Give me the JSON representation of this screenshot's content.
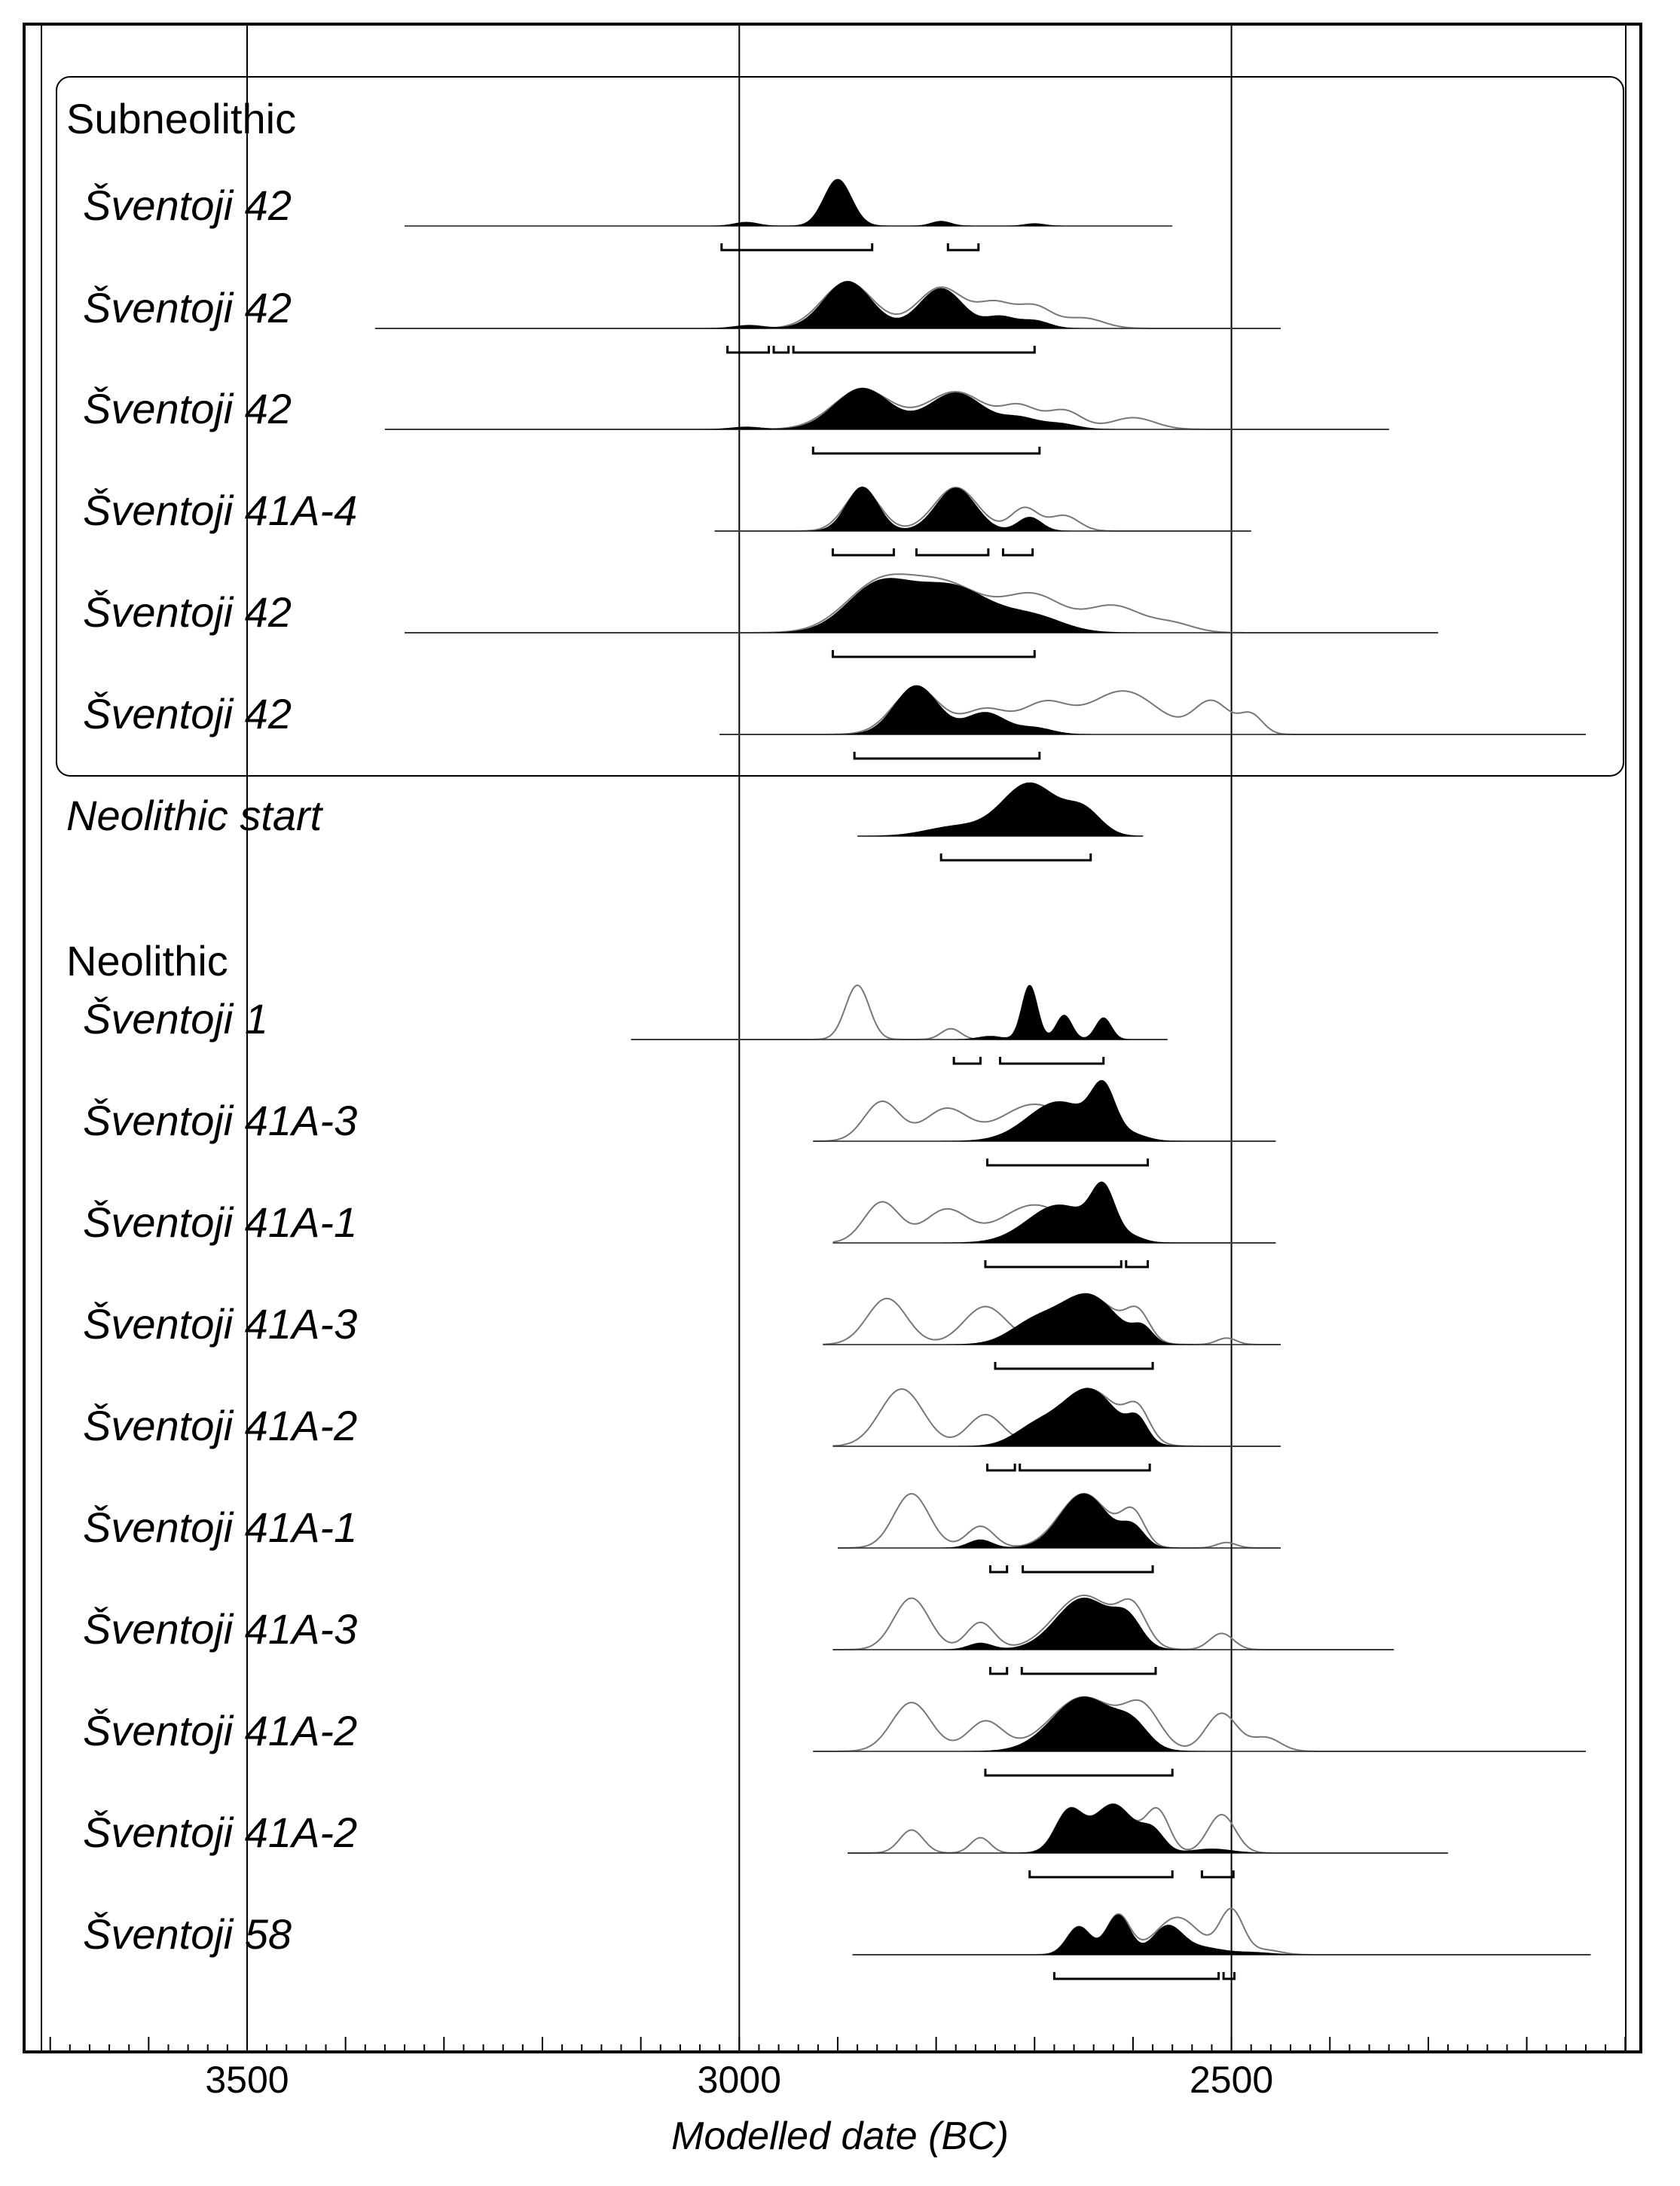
{
  "chart_data": {
    "type": "oxcal-multiplot",
    "xlabel": "Modelled date (BC)",
    "xlim": [
      3700,
      2060
    ],
    "x_ticks": [
      3500,
      3000,
      2500
    ],
    "x_tick_labels": [
      "3500",
      "3000",
      "2500"
    ],
    "grid_lines_x": [
      3500,
      3000,
      2500
    ],
    "groups": [
      {
        "label": "Subneolithic",
        "from": 0,
        "to": 5
      },
      {
        "label": "Neolithic",
        "from": 7,
        "to": 19
      }
    ],
    "rows": [
      {
        "label": "Šventoji 42",
        "italic": true,
        "range": [
          3340,
          2560
        ],
        "peaks": [
          [
            2993,
            0.08,
            12
          ],
          [
            2900,
            1.0,
            14
          ],
          [
            2795,
            0.1,
            10
          ],
          [
            2700,
            0.05,
            10
          ]
        ],
        "hpd": [
          [
            3018,
            2865
          ],
          [
            2788,
            2757
          ]
        ]
      },
      {
        "label": "Šventoji 42",
        "italic": true,
        "range": [
          3370,
          2450
        ],
        "peaks": [
          [
            2990,
            0.06,
            15
          ],
          [
            2890,
            0.92,
            24
          ],
          [
            2795,
            0.78,
            22
          ],
          [
            2735,
            0.22,
            15
          ],
          [
            2700,
            0.15,
            15
          ]
        ],
        "prior": [
          [
            2890,
            0.9,
            26
          ],
          [
            2795,
            0.8,
            24
          ],
          [
            2740,
            0.45,
            18
          ],
          [
            2700,
            0.42,
            18
          ],
          [
            2650,
            0.2,
            20
          ]
        ],
        "hpd": [
          [
            3012,
            2970
          ],
          [
            2965,
            2950
          ],
          [
            2945,
            2700
          ]
        ]
      },
      {
        "label": "Šventoji 42",
        "italic": true,
        "range": [
          3360,
          2340
        ],
        "peaks": [
          [
            2993,
            0.05,
            15
          ],
          [
            2875,
            0.88,
            28
          ],
          [
            2780,
            0.78,
            28
          ],
          [
            2715,
            0.22,
            18
          ],
          [
            2675,
            0.12,
            18
          ]
        ],
        "prior": [
          [
            2875,
            0.85,
            30
          ],
          [
            2780,
            0.8,
            30
          ],
          [
            2715,
            0.45,
            18
          ],
          [
            2670,
            0.4,
            18
          ],
          [
            2600,
            0.25,
            22
          ]
        ],
        "hpd": [
          [
            2925,
            2695
          ]
        ]
      },
      {
        "label": "Šventoji 41A-4",
        "italic": true,
        "range": [
          3025,
          2480
        ],
        "peaks": [
          [
            2875,
            0.86,
            16
          ],
          [
            2780,
            0.84,
            20
          ],
          [
            2705,
            0.27,
            12
          ]
        ],
        "prior": [
          [
            2875,
            0.8,
            18
          ],
          [
            2780,
            0.85,
            22
          ],
          [
            2710,
            0.45,
            14
          ],
          [
            2670,
            0.3,
            15
          ]
        ],
        "hpd": [
          [
            2905,
            2843
          ],
          [
            2820,
            2747
          ],
          [
            2732,
            2702
          ]
        ]
      },
      {
        "label": "Šventoji 42",
        "italic": true,
        "range": [
          3340,
          2290
        ],
        "peaks": [
          [
            2860,
            0.75,
            32
          ],
          [
            2785,
            0.78,
            40
          ],
          [
            2700,
            0.25,
            30
          ]
        ],
        "prior": [
          [
            2860,
            0.75,
            34
          ],
          [
            2790,
            0.8,
            40
          ],
          [
            2700,
            0.6,
            30
          ],
          [
            2620,
            0.45,
            28
          ],
          [
            2560,
            0.15,
            22
          ]
        ],
        "hpd": [
          [
            2905,
            2700
          ]
        ]
      },
      {
        "label": "Šventoji 42",
        "italic": true,
        "range": [
          3020,
          2140
        ],
        "peaks": [
          [
            2820,
            0.9,
            22
          ],
          [
            2750,
            0.4,
            20
          ],
          [
            2700,
            0.12,
            18
          ]
        ],
        "prior": [
          [
            2820,
            0.85,
            24
          ],
          [
            2750,
            0.45,
            22
          ],
          [
            2690,
            0.55,
            24
          ],
          [
            2610,
            0.8,
            35
          ],
          [
            2520,
            0.6,
            18
          ],
          [
            2480,
            0.35,
            12
          ]
        ],
        "hpd": [
          [
            2883,
            2695
          ]
        ]
      },
      {
        "label": "Neolithic start",
        "italic": true,
        "range": [
          2880,
          2590
        ],
        "peaks": [
          [
            2705,
            1.0,
            28
          ],
          [
            2650,
            0.45,
            18
          ],
          [
            2780,
            0.18,
            30
          ]
        ],
        "hpd": [
          [
            2795,
            2643
          ]
        ]
      },
      {
        "label": "Šventoji 1",
        "italic": true,
        "range": [
          3110,
          2565
        ],
        "peaks": [
          [
            2705,
            1.0,
            8
          ],
          [
            2670,
            0.45,
            8
          ],
          [
            2630,
            0.4,
            8
          ],
          [
            2745,
            0.06,
            12
          ]
        ],
        "prior": [
          [
            2880,
            1.0,
            12
          ],
          [
            2785,
            0.2,
            10
          ]
        ],
        "hpd": [
          [
            2782,
            2755
          ],
          [
            2735,
            2630
          ]
        ]
      },
      {
        "label": "Šventoji 41A-3",
        "italic": true,
        "range": [
          2925,
          2455
        ],
        "peaks": [
          [
            2675,
            0.75,
            32
          ],
          [
            2630,
            0.85,
            12
          ],
          [
            2600,
            0.1,
            15
          ]
        ],
        "prior": [
          [
            2855,
            0.75,
            18
          ],
          [
            2790,
            0.6,
            22
          ],
          [
            2700,
            0.7,
            35
          ],
          [
            2630,
            0.85,
            12
          ]
        ],
        "hpd": [
          [
            2748,
            2585
          ]
        ]
      },
      {
        "label": "Šventoji 41A-1",
        "italic": true,
        "range": [
          2905,
          2455
        ],
        "peaks": [
          [
            2675,
            0.7,
            32
          ],
          [
            2630,
            0.85,
            12
          ],
          [
            2600,
            0.08,
            12
          ]
        ],
        "prior": [
          [
            2855,
            0.75,
            18
          ],
          [
            2790,
            0.6,
            22
          ],
          [
            2700,
            0.7,
            35
          ],
          [
            2630,
            0.85,
            12
          ]
        ],
        "hpd": [
          [
            2750,
            2612
          ],
          [
            2607,
            2585
          ]
        ]
      },
      {
        "label": "Šventoji 41A-3",
        "italic": true,
        "range": [
          2915,
          2450
        ],
        "peaks": [
          [
            2645,
            0.9,
            28
          ],
          [
            2700,
            0.4,
            25
          ],
          [
            2590,
            0.25,
            10
          ]
        ],
        "prior": [
          [
            2850,
            0.85,
            20
          ],
          [
            2750,
            0.7,
            22
          ],
          [
            2645,
            0.9,
            28
          ],
          [
            2595,
            0.5,
            12
          ],
          [
            2505,
            0.12,
            10
          ]
        ],
        "hpd": [
          [
            2740,
            2580
          ]
        ]
      },
      {
        "label": "Šventoji 41A-2",
        "italic": true,
        "range": [
          2905,
          2450
        ],
        "peaks": [
          [
            2645,
            1.0,
            28
          ],
          [
            2700,
            0.3,
            22
          ],
          [
            2595,
            0.35,
            10
          ]
        ],
        "prior": [
          [
            2835,
            1.0,
            22
          ],
          [
            2750,
            0.55,
            18
          ],
          [
            2645,
            1.0,
            30
          ],
          [
            2595,
            0.5,
            12
          ]
        ],
        "hpd": [
          [
            2748,
            2720
          ],
          [
            2715,
            2583
          ]
        ]
      },
      {
        "label": "Šventoji 41A-1",
        "italic": true,
        "range": [
          2900,
          2450
        ],
        "peaks": [
          [
            2650,
            1.0,
            24
          ],
          [
            2600,
            0.35,
            12
          ],
          [
            2755,
            0.15,
            12
          ]
        ],
        "prior": [
          [
            2825,
            1.0,
            18
          ],
          [
            2755,
            0.4,
            14
          ],
          [
            2650,
            1.0,
            25
          ],
          [
            2600,
            0.6,
            12
          ],
          [
            2505,
            0.1,
            10
          ]
        ],
        "hpd": [
          [
            2745,
            2728
          ],
          [
            2712,
            2580
          ]
        ]
      },
      {
        "label": "Šventoji 41A-3",
        "italic": true,
        "range": [
          2905,
          2335
        ],
        "peaks": [
          [
            2650,
            0.95,
            28
          ],
          [
            2605,
            0.45,
            14
          ],
          [
            2755,
            0.12,
            12
          ]
        ],
        "prior": [
          [
            2825,
            0.95,
            18
          ],
          [
            2755,
            0.5,
            14
          ],
          [
            2650,
            1.0,
            30
          ],
          [
            2600,
            0.65,
            14
          ],
          [
            2510,
            0.3,
            12
          ]
        ],
        "hpd": [
          [
            2745,
            2728
          ],
          [
            2713,
            2577
          ]
        ]
      },
      {
        "label": "Šventoji 41A-2",
        "italic": true,
        "range": [
          2925,
          2140
        ],
        "peaks": [
          [
            2650,
            1.0,
            32
          ],
          [
            2600,
            0.35,
            16
          ]
        ],
        "prior": [
          [
            2825,
            0.9,
            20
          ],
          [
            2750,
            0.55,
            18
          ],
          [
            2650,
            1.0,
            34
          ],
          [
            2590,
            0.7,
            18
          ],
          [
            2510,
            0.7,
            16
          ],
          [
            2465,
            0.25,
            15
          ]
        ],
        "hpd": [
          [
            2750,
            2560
          ]
        ]
      },
      {
        "label": "Šventoji 41A-2",
        "italic": true,
        "range": [
          2890,
          2280
        ],
        "peaks": [
          [
            2665,
            0.8,
            14
          ],
          [
            2620,
            0.95,
            20
          ],
          [
            2580,
            0.4,
            12
          ],
          [
            2520,
            0.08,
            20
          ]
        ],
        "prior": [
          [
            2825,
            0.45,
            12
          ],
          [
            2755,
            0.3,
            10
          ],
          [
            2665,
            0.8,
            14
          ],
          [
            2620,
            0.95,
            20
          ],
          [
            2575,
            0.8,
            12
          ],
          [
            2510,
            0.75,
            14
          ]
        ],
        "hpd": [
          [
            2705,
            2560
          ],
          [
            2530,
            2498
          ]
        ]
      },
      {
        "label": "Šventoji 58",
        "italic": true,
        "range": [
          2885,
          2135
        ],
        "peaks": [
          [
            2655,
            0.6,
            12
          ],
          [
            2615,
            0.85,
            12
          ],
          [
            2565,
            0.6,
            15
          ],
          [
            2530,
            0.15,
            20
          ],
          [
            2480,
            0.05,
            20
          ]
        ],
        "prior": [
          [
            2655,
            0.6,
            12
          ],
          [
            2615,
            0.85,
            12
          ],
          [
            2555,
            0.8,
            22
          ],
          [
            2500,
            0.95,
            12
          ],
          [
            2465,
            0.1,
            15
          ]
        ],
        "hpd": [
          [
            2680,
            2513
          ],
          [
            2508,
            2497
          ]
        ]
      }
    ]
  }
}
